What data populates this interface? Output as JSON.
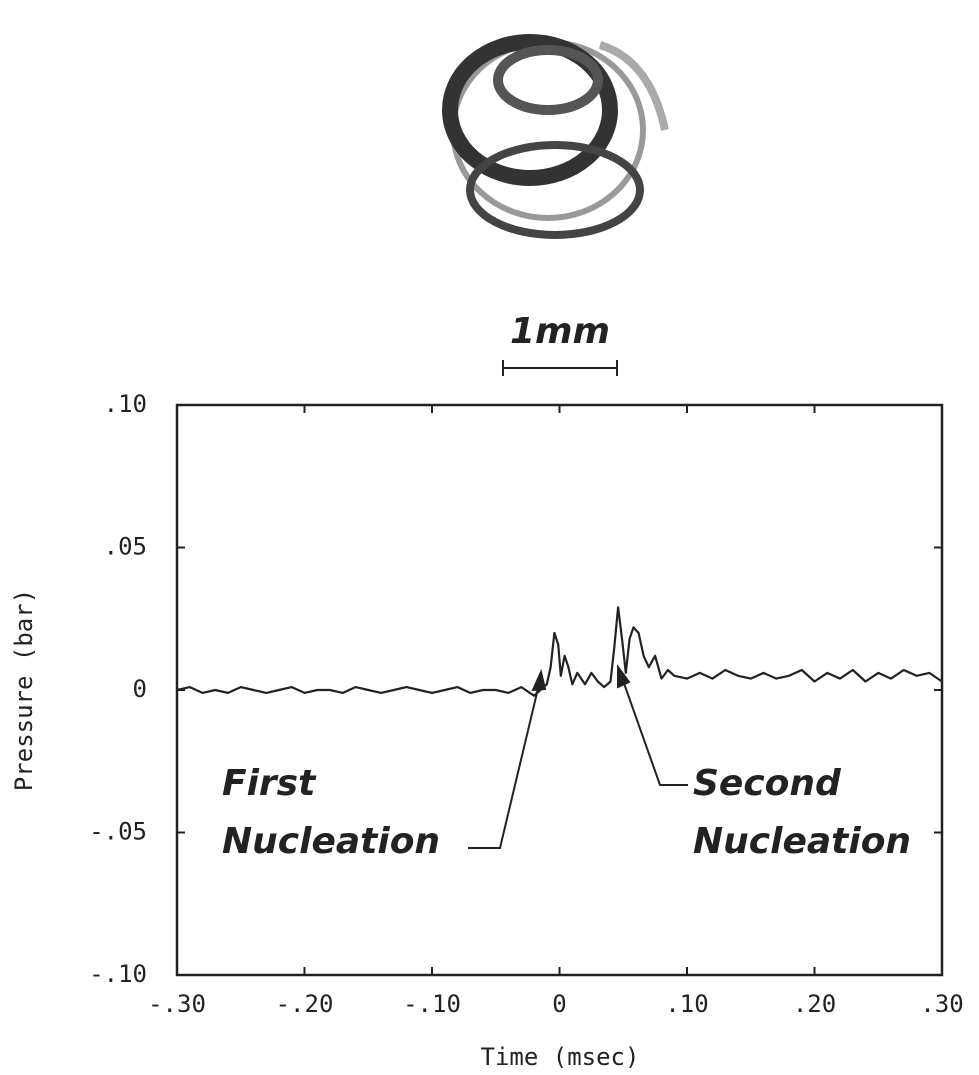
{
  "chart_data": {
    "type": "line",
    "xlabel": "Time  (msec)",
    "ylabel": "Pressure  (bar)",
    "scale_bar": "1mm",
    "annotations": [
      "First",
      "Nucleation",
      "Second",
      "Nucleation"
    ],
    "x": [
      -0.3,
      -0.29,
      -0.28,
      -0.27,
      -0.26,
      -0.25,
      -0.24,
      -0.23,
      -0.22,
      -0.21,
      -0.2,
      -0.19,
      -0.18,
      -0.17,
      -0.16,
      -0.15,
      -0.14,
      -0.13,
      -0.12,
      -0.11,
      -0.1,
      -0.09,
      -0.08,
      -0.07,
      -0.06,
      -0.05,
      -0.04,
      -0.03,
      -0.02,
      -0.015,
      -0.01,
      -0.007,
      -0.004,
      -0.001,
      0.001,
      0.004,
      0.007,
      0.01,
      0.014,
      0.02,
      0.025,
      0.03,
      0.035,
      0.04,
      0.043,
      0.046,
      0.049,
      0.052,
      0.055,
      0.058,
      0.062,
      0.066,
      0.07,
      0.075,
      0.08,
      0.085,
      0.09,
      0.1,
      0.11,
      0.12,
      0.13,
      0.14,
      0.15,
      0.16,
      0.17,
      0.18,
      0.19,
      0.2,
      0.21,
      0.22,
      0.23,
      0.24,
      0.25,
      0.26,
      0.27,
      0.28,
      0.29,
      0.3
    ],
    "series": [
      {
        "name": "Pressure",
        "color": "#222222",
        "values": [
          0.0,
          0.001,
          -0.001,
          0.0,
          -0.001,
          0.001,
          0.0,
          -0.001,
          0.0,
          0.001,
          -0.001,
          0.0,
          0.0,
          -0.001,
          0.001,
          0.0,
          -0.001,
          0.0,
          0.001,
          0.0,
          -0.001,
          0.0,
          0.001,
          -0.001,
          0.0,
          0.0,
          -0.001,
          0.001,
          -0.002,
          0.0,
          0.002,
          0.008,
          0.02,
          0.016,
          0.005,
          0.012,
          0.008,
          0.002,
          0.006,
          0.002,
          0.006,
          0.003,
          0.001,
          0.003,
          0.015,
          0.029,
          0.018,
          0.006,
          0.018,
          0.022,
          0.02,
          0.012,
          0.008,
          0.012,
          0.004,
          0.007,
          0.005,
          0.004,
          0.006,
          0.004,
          0.007,
          0.005,
          0.004,
          0.006,
          0.004,
          0.005,
          0.007,
          0.003,
          0.006,
          0.004,
          0.007,
          0.003,
          0.006,
          0.004,
          0.007,
          0.005,
          0.006,
          0.003
        ]
      }
    ],
    "xlim": [
      -0.3,
      0.3
    ],
    "ylim": [
      -0.1,
      0.1
    ],
    "xticks": [
      {
        "value": -0.3,
        "label": "-.30"
      },
      {
        "value": -0.2,
        "label": "-.20"
      },
      {
        "value": -0.1,
        "label": "-.10"
      },
      0,
      {
        "value": 0.1,
        "label": ".10"
      },
      {
        "value": 0.2,
        "label": ".20"
      },
      {
        "value": 0.3,
        "label": ".30"
      }
    ],
    "yticks": [
      {
        "value": -0.1,
        "label": "-.10"
      },
      {
        "value": -0.05,
        "label": "-.05"
      },
      0,
      {
        "value": 0.05,
        "label": ".05"
      },
      {
        "value": 0.1,
        "label": ".10"
      }
    ]
  }
}
